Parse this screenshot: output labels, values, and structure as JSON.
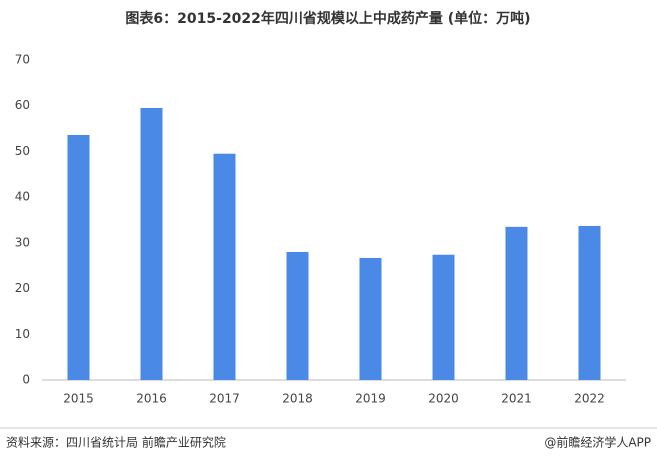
{
  "chart_data": {
    "type": "bar",
    "title": "图表6：2015-2022年四川省规模以上中成药产量 (单位：万吨)",
    "categories": [
      "2015",
      "2016",
      "2017",
      "2018",
      "2019",
      "2020",
      "2021",
      "2022"
    ],
    "values": [
      53.6,
      59.5,
      49.5,
      28.0,
      26.7,
      27.4,
      33.5,
      33.7
    ],
    "color": "#4a8ae6",
    "ylim": [
      0,
      70
    ],
    "yticks": [
      0,
      10,
      20,
      30,
      40,
      50,
      60,
      70
    ],
    "grid": false,
    "source": "资料来源：四川省统计局 前瞻产业研究院",
    "credit": "@前瞻经济学人APP"
  }
}
